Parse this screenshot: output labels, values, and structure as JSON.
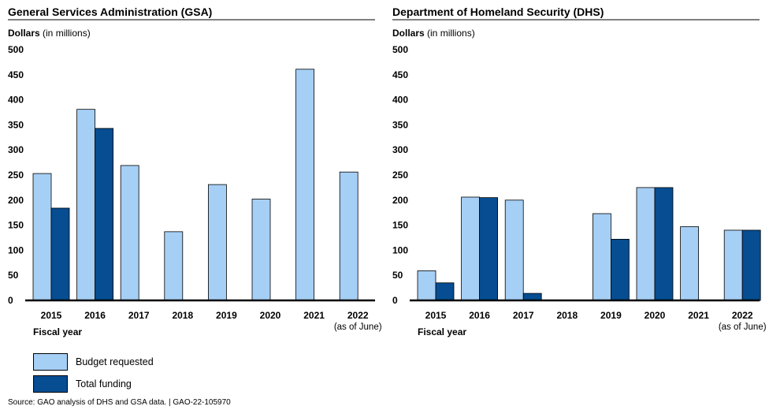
{
  "colors": {
    "budget_requested": "#a6cff5",
    "total_funding": "#064d91",
    "axis": "#000000"
  },
  "legend": {
    "budget_requested": "Budget requested",
    "total_funding": "Total funding"
  },
  "source": "Source: GAO analysis of DHS and GSA data.  |  GAO-22-105970",
  "chart_data": [
    {
      "type": "bar",
      "title": "General Services Administration (GSA)",
      "ylabel_bold": "Dollars",
      "ylabel_rest": " (in millions)",
      "xlabel": "Fiscal year",
      "ylim": [
        0,
        500
      ],
      "yticks": [
        "0",
        "50",
        "100",
        "150",
        "200",
        "250",
        "300",
        "350",
        "400",
        "450",
        "500"
      ],
      "categories": [
        "2015",
        "2016",
        "2017",
        "2018",
        "2019",
        "2020",
        "2021",
        "2022"
      ],
      "category_note": {
        "index": 7,
        "text": "(as of June)"
      },
      "series": [
        {
          "name": "Budget requested",
          "values": [
            253,
            381,
            269,
            137,
            231,
            202,
            461,
            256
          ]
        },
        {
          "name": "Total funding",
          "values": [
            184,
            343,
            0,
            0,
            0,
            0,
            0,
            0
          ]
        }
      ]
    },
    {
      "type": "bar",
      "title": "Department of Homeland Security (DHS)",
      "ylabel_bold": "Dollars",
      "ylabel_rest": " (in millions)",
      "xlabel": "Fiscal year",
      "ylim": [
        0,
        500
      ],
      "yticks": [
        "0",
        "50",
        "100",
        "150",
        "200",
        "250",
        "300",
        "350",
        "400",
        "450",
        "500"
      ],
      "categories": [
        "2015",
        "2016",
        "2017",
        "2018",
        "2019",
        "2020",
        "2021",
        "2022"
      ],
      "category_note": {
        "index": 7,
        "text": "(as of June)"
      },
      "series": [
        {
          "name": "Budget requested",
          "values": [
            59,
            206,
            200,
            0,
            173,
            225,
            147,
            140
          ]
        },
        {
          "name": "Total funding",
          "values": [
            35,
            205,
            14,
            0,
            122,
            225,
            0,
            140
          ]
        }
      ]
    }
  ]
}
